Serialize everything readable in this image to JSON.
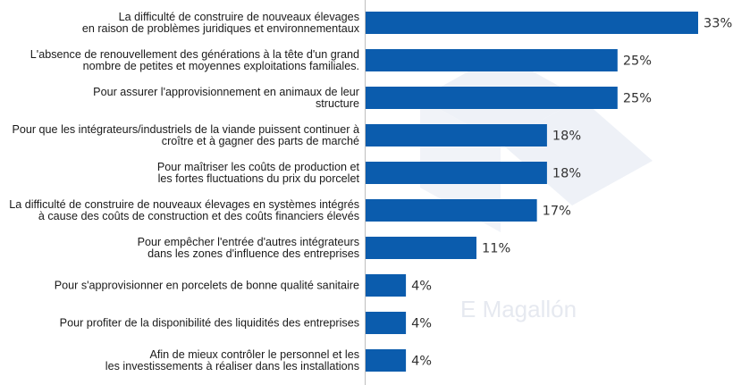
{
  "chart_data": {
    "type": "bar",
    "orientation": "horizontal",
    "unit": "%",
    "categories": [
      [
        "La difficulté de construire de nouveaux élevages",
        "en raison de problèmes juridiques et environnementaux"
      ],
      [
        "L'absence de renouvellement des générations à la tête d'un grand",
        "nombre de petites et moyennes exploitations familiales."
      ],
      [
        "Pour assurer l'approvisionnement en animaux de leur",
        "structure"
      ],
      [
        "Pour que les intégrateurs/industriels de la viande puissent continuer à",
        "croître et à gagner des parts de marché"
      ],
      [
        "Pour maîtriser les coûts de production et",
        "les fortes fluctuations du prix du porcelet"
      ],
      [
        "La difficulté de construire de nouveaux élevages en systèmes intégrés",
        "à cause des coûts de construction et des coûts financiers élevés"
      ],
      [
        "Pour empêcher l'entrée d'autres intégrateurs",
        "dans les zones d'influence des entreprises"
      ],
      [
        "Pour s'approvisionner en porcelets de bonne qualité sanitaire"
      ],
      [
        "Pour profiter de la disponibilité des liquidités des entreprises"
      ],
      [
        "Afin de mieux contrôler le personnel et les",
        "les investissements à réaliser dans les installations"
      ]
    ],
    "values": [
      33,
      25,
      25,
      18,
      18,
      17,
      11,
      4,
      4,
      4
    ],
    "value_labels": [
      "33%",
      "25%",
      "25%",
      "18%",
      "18%",
      "17%",
      "11%",
      "4%",
      "4%",
      "4%"
    ],
    "xlim": [
      0,
      33
    ],
    "grid": false,
    "legend": "none",
    "bar_color": "#0b5cad",
    "axis_color": "#bfbfbf"
  },
  "watermark": {
    "text": "E Magallón",
    "color": "#e6e9f0"
  }
}
